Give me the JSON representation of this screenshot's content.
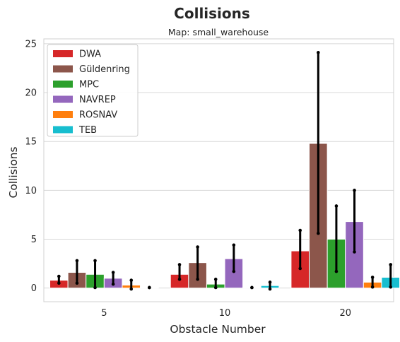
{
  "chart_data": {
    "type": "bar",
    "title": "Collisions",
    "subtitle": "Map: small_warehouse",
    "xlabel": "Obstacle Number",
    "ylabel": "Collisions",
    "categories": [
      "5",
      "10",
      "20"
    ],
    "ylim": [
      -1.4,
      25.5
    ],
    "yticks": [
      0,
      5,
      10,
      15,
      20,
      25
    ],
    "grid": true,
    "legend_position": "top-left",
    "series": [
      {
        "name": "DWA",
        "color": "#d62728",
        "values": [
          0.8,
          1.4,
          3.8
        ],
        "err_low": [
          0.5,
          0.9,
          2.0
        ],
        "err_high": [
          1.2,
          2.4,
          5.9
        ]
      },
      {
        "name": "Güldenring",
        "color": "#8c564b",
        "values": [
          1.6,
          2.6,
          14.8
        ],
        "err_low": [
          0.5,
          0.9,
          5.6
        ],
        "err_high": [
          2.8,
          4.2,
          24.1
        ]
      },
      {
        "name": "MPC",
        "color": "#2ca02c",
        "values": [
          1.4,
          0.4,
          5.0
        ],
        "err_low": [
          0.05,
          0.05,
          1.7
        ],
        "err_high": [
          2.8,
          0.9,
          8.4
        ]
      },
      {
        "name": "NAVREP",
        "color": "#9467bd",
        "values": [
          1.0,
          3.0,
          6.8
        ],
        "err_low": [
          0.4,
          1.7,
          3.7
        ],
        "err_high": [
          1.6,
          4.4,
          10.0
        ]
      },
      {
        "name": "ROSNAV",
        "color": "#ff7f0e",
        "values": [
          0.3,
          0.05,
          0.6
        ],
        "err_low": [
          -0.1,
          0.05,
          0.1
        ],
        "err_high": [
          0.8,
          0.05,
          1.1
        ]
      },
      {
        "name": "TEB",
        "color": "#17becf",
        "values": [
          0.05,
          0.25,
          1.1
        ],
        "err_low": [
          0.05,
          -0.1,
          0.1
        ],
        "err_high": [
          0.05,
          0.6,
          2.4
        ]
      }
    ]
  }
}
